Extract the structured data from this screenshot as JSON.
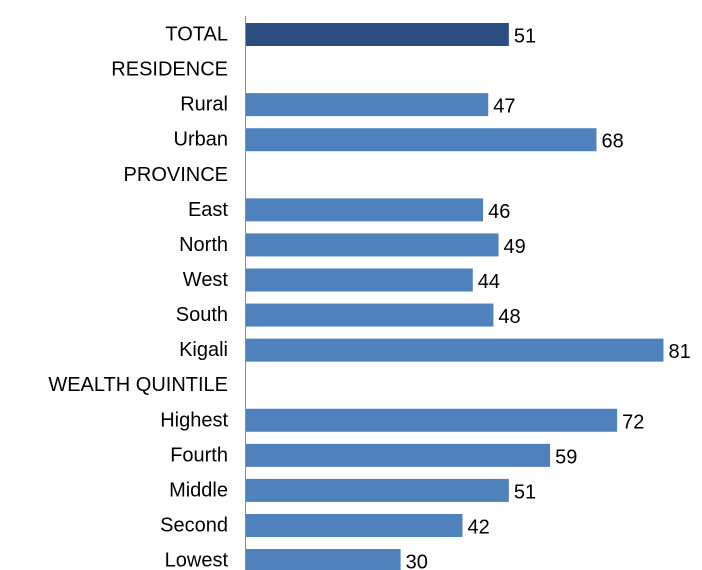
{
  "chart_data": {
    "type": "bar",
    "orientation": "horizontal",
    "title": "",
    "xlabel": "",
    "ylabel": "",
    "xlim": [
      0,
      81
    ],
    "grid": false,
    "legend": "none",
    "categories": [
      "TOTAL",
      "RESIDENCE",
      "Rural",
      "Urban",
      "PROVINCE",
      "East",
      "North",
      "West",
      "South",
      "Kigali",
      "WEALTH QUINTILE",
      "Highest",
      "Fourth",
      "Middle",
      "Second",
      "Lowest"
    ],
    "values": [
      51,
      null,
      47,
      68,
      null,
      46,
      49,
      44,
      48,
      81,
      null,
      72,
      59,
      51,
      42,
      30
    ],
    "highlight_index": 0,
    "colors": {
      "bar": "#4F81BD",
      "highlight": "#2C4D7F",
      "axis": "#8C8C8C"
    }
  }
}
